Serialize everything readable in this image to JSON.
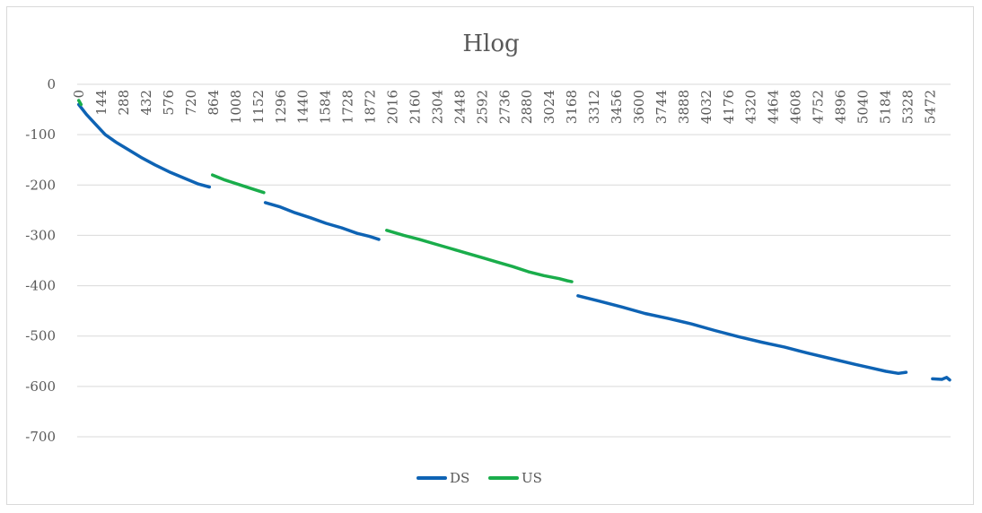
{
  "chart_data": {
    "type": "line",
    "title": "Hlog",
    "xlabel": "",
    "ylabel": "",
    "xlim": [
      0,
      5616
    ],
    "ylim": [
      -700,
      0
    ],
    "y_ticks": [
      0,
      -100,
      -200,
      -300,
      -400,
      -500,
      -600,
      -700
    ],
    "x_tick_labels": [
      "0",
      "144",
      "288",
      "432",
      "576",
      "720",
      "864",
      "1008",
      "1152",
      "1296",
      "1440",
      "1584",
      "1728",
      "1872",
      "2016",
      "2160",
      "2304",
      "2448",
      "2592",
      "2736",
      "2880",
      "3024",
      "3168",
      "3312",
      "3456",
      "3600",
      "3744",
      "3888",
      "4032",
      "4176",
      "4320",
      "4464",
      "4608",
      "4752",
      "4896",
      "5040",
      "5184",
      "5328",
      "5472"
    ],
    "grid": true,
    "legend_position": "bottom",
    "series": [
      {
        "name": "DS",
        "color": "#0E63B4",
        "segments": [
          [
            [
              10,
              -40
            ],
            [
              60,
              -60
            ],
            [
              120,
              -80
            ],
            [
              180,
              -100
            ],
            [
              250,
              -115
            ],
            [
              330,
              -130
            ],
            [
              410,
              -145
            ],
            [
              500,
              -160
            ],
            [
              600,
              -175
            ],
            [
              700,
              -188
            ],
            [
              780,
              -198
            ],
            [
              850,
              -204
            ]
          ],
          [
            [
              1210,
              -235
            ],
            [
              1300,
              -243
            ],
            [
              1400,
              -255
            ],
            [
              1500,
              -265
            ],
            [
              1600,
              -276
            ],
            [
              1700,
              -285
            ],
            [
              1800,
              -296
            ],
            [
              1880,
              -302
            ],
            [
              1940,
              -308
            ]
          ],
          [
            [
              3220,
              -420
            ],
            [
              3350,
              -430
            ],
            [
              3500,
              -442
            ],
            [
              3650,
              -455
            ],
            [
              3800,
              -465
            ],
            [
              3950,
              -476
            ],
            [
              4100,
              -489
            ],
            [
              4250,
              -501
            ],
            [
              4400,
              -512
            ],
            [
              4550,
              -522
            ],
            [
              4700,
              -534
            ],
            [
              4850,
              -545
            ],
            [
              5000,
              -556
            ],
            [
              5100,
              -563
            ],
            [
              5200,
              -570
            ],
            [
              5280,
              -574
            ],
            [
              5330,
              -572
            ]
          ],
          [
            [
              5500,
              -585
            ],
            [
              5560,
              -586
            ],
            [
              5590,
              -582
            ],
            [
              5610,
              -587
            ]
          ]
        ]
      },
      {
        "name": "US",
        "color": "#1AAD4B",
        "segments": [
          [
            [
              10,
              -32
            ],
            [
              25,
              -40
            ]
          ],
          [
            [
              870,
              -180
            ],
            [
              950,
              -190
            ],
            [
              1050,
              -200
            ],
            [
              1150,
              -210
            ],
            [
              1200,
              -215
            ]
          ],
          [
            [
              1990,
              -290
            ],
            [
              2100,
              -300
            ],
            [
              2200,
              -308
            ],
            [
              2300,
              -317
            ],
            [
              2400,
              -326
            ],
            [
              2500,
              -335
            ],
            [
              2600,
              -344
            ],
            [
              2700,
              -353
            ],
            [
              2800,
              -362
            ],
            [
              2900,
              -372
            ],
            [
              3000,
              -380
            ],
            [
              3100,
              -386
            ],
            [
              3150,
              -390
            ],
            [
              3180,
              -392
            ]
          ]
        ]
      }
    ]
  }
}
